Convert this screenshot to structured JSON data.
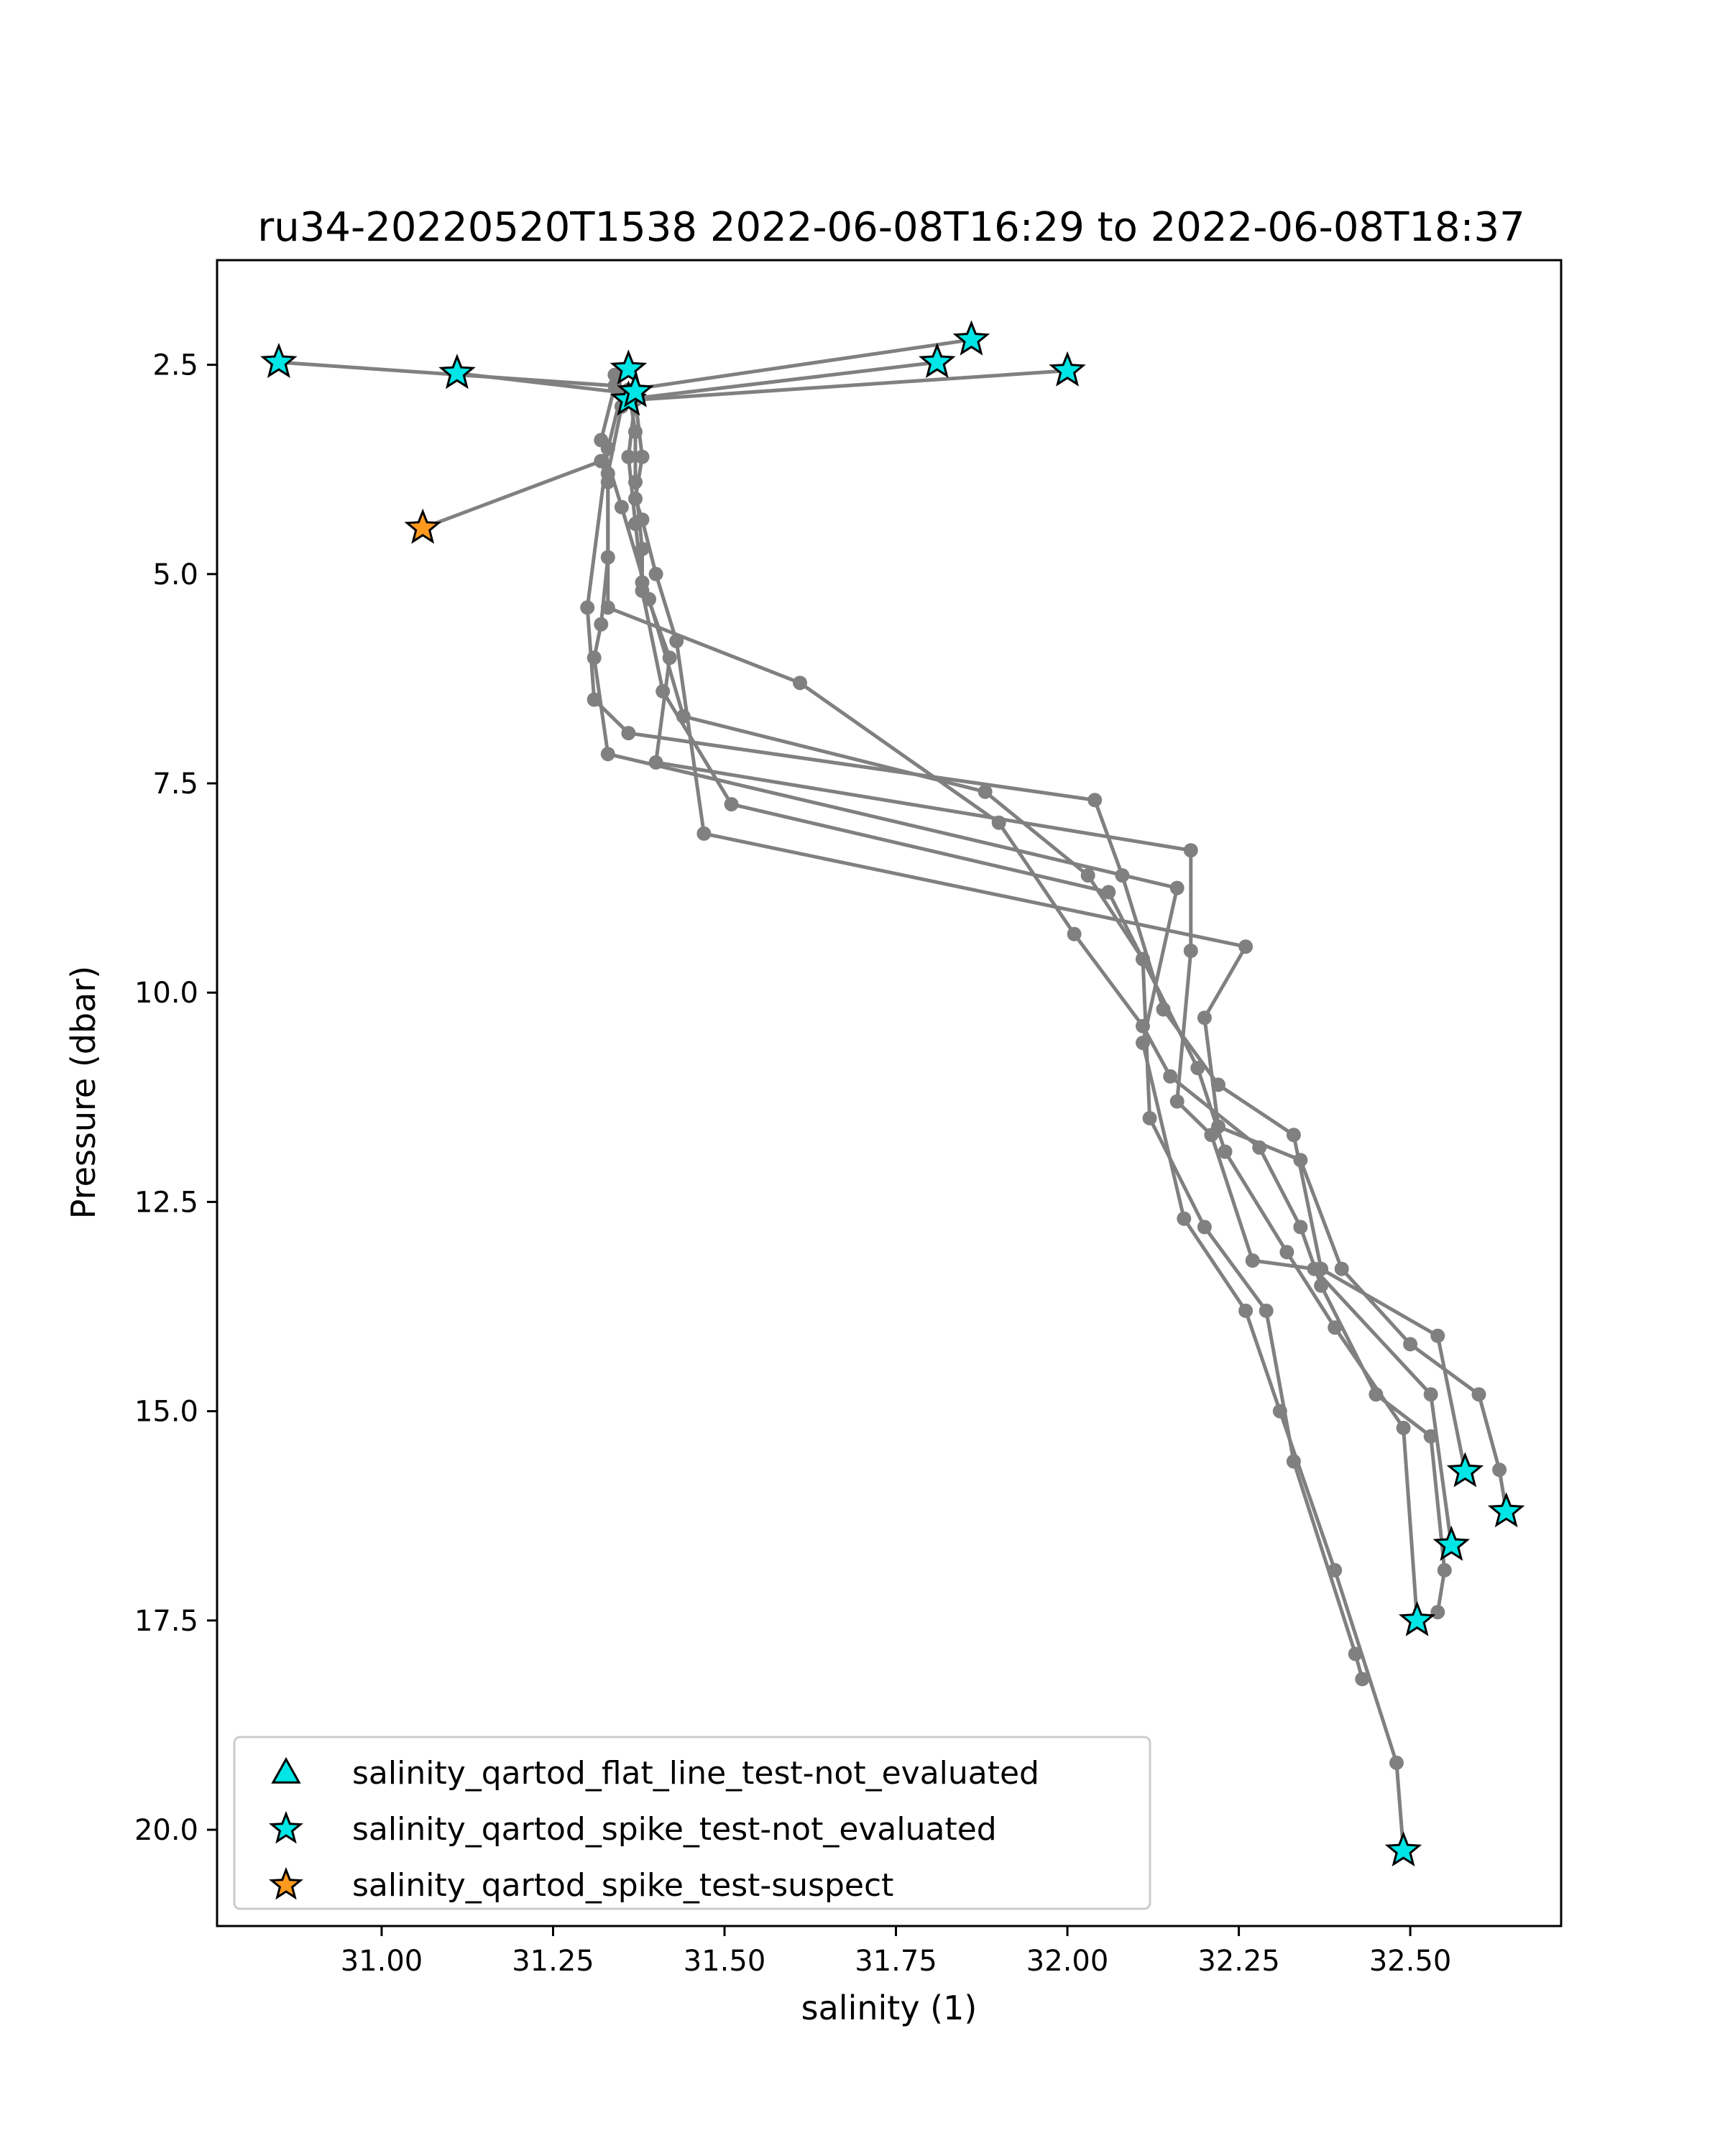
{
  "chart_data": {
    "type": "scatter",
    "title": "ru34-20220520T1538 2022-06-08T16:29 to 2022-06-08T18:37",
    "xlabel": "salinity (1)",
    "ylabel": "Pressure (dbar)",
    "xlim": [
      30.76,
      32.72
    ],
    "ylim": [
      21.15,
      1.25
    ],
    "y_inverted": true,
    "x_ticks": [
      {
        "value": 31.0,
        "label": "31.00"
      },
      {
        "value": 31.25,
        "label": "31.25"
      },
      {
        "value": 31.5,
        "label": "31.50"
      },
      {
        "value": 31.75,
        "label": "31.75"
      },
      {
        "value": 32.0,
        "label": "32.00"
      },
      {
        "value": 32.25,
        "label": "32.25"
      },
      {
        "value": 32.5,
        "label": "32.50"
      }
    ],
    "y_ticks": [
      {
        "value": 2.5,
        "label": "2.5"
      },
      {
        "value": 5.0,
        "label": "5.0"
      },
      {
        "value": 7.5,
        "label": "7.5"
      },
      {
        "value": 10.0,
        "label": "10.0"
      },
      {
        "value": 12.5,
        "label": "12.5"
      },
      {
        "value": 15.0,
        "label": "15.0"
      },
      {
        "value": 17.5,
        "label": "17.5"
      },
      {
        "value": 20.0,
        "label": "20.0"
      }
    ],
    "grid": false,
    "legend_placement": "lower-left",
    "line_color": "#808080",
    "profiles": [
      [
        [
          30.85,
          2.47
        ],
        [
          31.34,
          2.75
        ],
        [
          31.32,
          3.4
        ],
        [
          31.35,
          4.2
        ],
        [
          31.39,
          5.3
        ],
        [
          31.44,
          6.7
        ],
        [
          31.88,
          7.6
        ],
        [
          32.03,
          8.6
        ],
        [
          32.11,
          9.6
        ],
        [
          32.19,
          10.9
        ],
        [
          32.23,
          11.9
        ],
        [
          32.32,
          13.1
        ],
        [
          32.39,
          14.0
        ],
        [
          32.49,
          15.2
        ],
        [
          32.51,
          17.5
        ]
      ],
      [
        [
          31.11,
          2.6
        ],
        [
          31.35,
          2.83
        ],
        [
          31.33,
          3.5
        ],
        [
          31.3,
          5.4
        ],
        [
          31.31,
          6.5
        ],
        [
          31.36,
          6.9
        ],
        [
          32.04,
          7.7
        ],
        [
          32.08,
          8.6
        ],
        [
          32.14,
          10.2
        ],
        [
          32.22,
          11.1
        ],
        [
          32.33,
          11.7
        ],
        [
          32.37,
          13.3
        ],
        [
          32.54,
          14.1
        ],
        [
          32.58,
          15.72
        ]
      ],
      [
        [
          31.36,
          2.55
        ],
        [
          31.34,
          2.62
        ],
        [
          31.35,
          3.0
        ],
        [
          31.33,
          3.8
        ],
        [
          31.33,
          4.8
        ],
        [
          31.32,
          5.6
        ],
        [
          31.31,
          6.0
        ],
        [
          31.33,
          7.15
        ],
        [
          32.16,
          8.75
        ],
        [
          32.11,
          10.6
        ],
        [
          32.17,
          12.7
        ],
        [
          32.26,
          13.8
        ],
        [
          32.31,
          15.0
        ],
        [
          32.39,
          16.9
        ],
        [
          32.48,
          19.2
        ],
        [
          32.49,
          20.25
        ]
      ],
      [
        [
          31.81,
          2.47
        ],
        [
          31.37,
          2.9
        ],
        [
          31.36,
          3.6
        ],
        [
          31.37,
          4.4
        ],
        [
          31.38,
          5.1
        ],
        [
          31.42,
          6.0
        ],
        [
          31.4,
          7.25
        ],
        [
          32.18,
          8.3
        ],
        [
          32.18,
          9.5
        ],
        [
          32.16,
          11.3
        ],
        [
          32.21,
          11.7
        ],
        [
          32.27,
          13.2
        ],
        [
          32.36,
          13.3
        ],
        [
          32.53,
          14.8
        ],
        [
          32.56,
          16.6
        ]
      ],
      [
        [
          31.86,
          2.2
        ],
        [
          31.36,
          2.8
        ],
        [
          31.37,
          3.3
        ],
        [
          31.37,
          3.9
        ],
        [
          31.38,
          4.7
        ],
        [
          31.38,
          5.2
        ],
        [
          31.41,
          6.4
        ],
        [
          31.51,
          7.75
        ],
        [
          32.06,
          8.8
        ],
        [
          32.11,
          9.6
        ],
        [
          32.12,
          11.5
        ],
        [
          32.2,
          12.8
        ],
        [
          32.29,
          13.8
        ],
        [
          32.33,
          15.6
        ],
        [
          32.42,
          17.9
        ],
        [
          32.43,
          18.2
        ]
      ],
      [
        [
          32.0,
          2.57
        ],
        [
          31.37,
          2.92
        ],
        [
          31.38,
          3.6
        ],
        [
          31.37,
          4.1
        ],
        [
          31.38,
          4.35
        ],
        [
          31.4,
          5.0
        ],
        [
          31.43,
          5.8
        ],
        [
          31.47,
          8.1
        ],
        [
          32.26,
          9.45
        ],
        [
          32.2,
          10.3
        ],
        [
          32.22,
          11.6
        ],
        [
          32.34,
          12.0
        ],
        [
          32.4,
          13.3
        ],
        [
          32.5,
          14.2
        ],
        [
          32.6,
          14.8
        ],
        [
          32.63,
          15.7
        ],
        [
          32.64,
          16.2
        ]
      ],
      [
        [
          31.06,
          4.45
        ],
        [
          31.32,
          3.65
        ],
        [
          31.33,
          3.9
        ],
        [
          31.33,
          5.4
        ],
        [
          31.61,
          6.3
        ],
        [
          31.9,
          7.97
        ],
        [
          32.01,
          9.3
        ],
        [
          32.11,
          10.4
        ],
        [
          32.15,
          11.0
        ],
        [
          32.28,
          11.85
        ],
        [
          32.34,
          12.8
        ],
        [
          32.37,
          13.5
        ],
        [
          32.45,
          14.8
        ],
        [
          32.53,
          15.3
        ],
        [
          32.55,
          16.9
        ],
        [
          32.54,
          17.4
        ]
      ]
    ],
    "series": [
      {
        "name": "salinity_qartod_flat_line_test-not_evaluated",
        "marker": "triangle",
        "color": "#00e5e5",
        "points": []
      },
      {
        "name": "salinity_qartod_spike_test-not_evaluated",
        "marker": "star",
        "color": "#00e5e5",
        "points": [
          [
            30.85,
            2.47
          ],
          [
            31.11,
            2.6
          ],
          [
            31.36,
            2.55
          ],
          [
            31.36,
            2.92
          ],
          [
            31.37,
            2.82
          ],
          [
            31.81,
            2.47
          ],
          [
            31.86,
            2.2
          ],
          [
            32.0,
            2.57
          ],
          [
            32.58,
            15.72
          ],
          [
            32.64,
            16.2
          ],
          [
            32.56,
            16.6
          ],
          [
            32.51,
            17.5
          ],
          [
            32.49,
            20.25
          ]
        ]
      },
      {
        "name": "salinity_qartod_spike_test-suspect",
        "marker": "star",
        "color": "#ff9a1f",
        "points": [
          [
            31.06,
            4.45
          ]
        ]
      }
    ]
  }
}
